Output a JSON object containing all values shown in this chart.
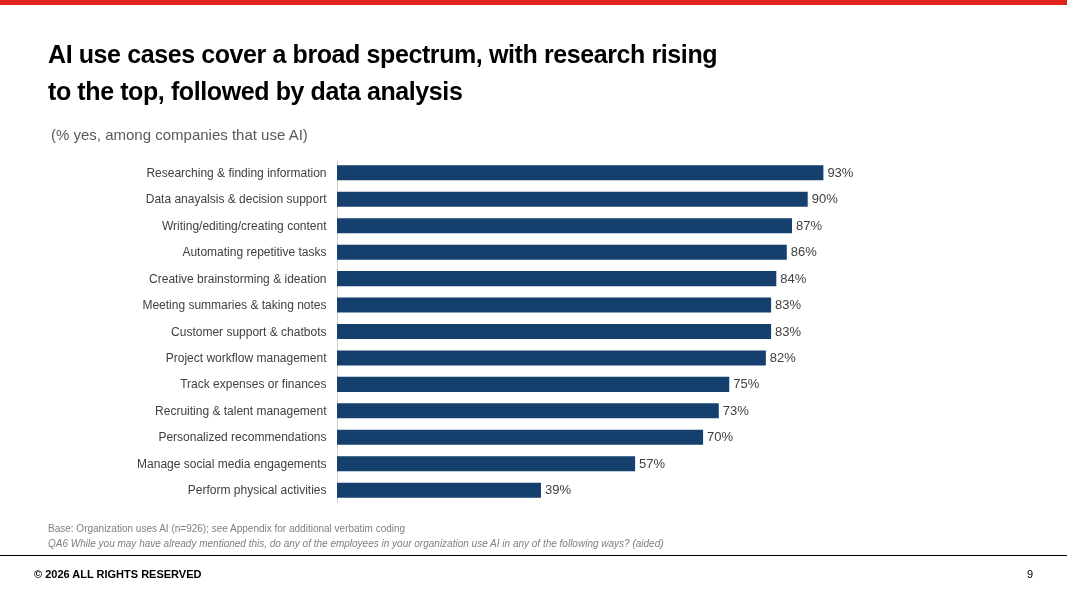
{
  "chart_data": {
    "type": "bar",
    "orientation": "horizontal",
    "title": "AI use cases cover a broad spectrum, with research rising to the top, followed by data analysis",
    "subtitle": "(% yes, among companies that use AI)",
    "categories": [
      "Researching & finding information",
      "Data anayalsis & decision support",
      "Writing/editing/creating content",
      "Automating repetitive tasks",
      "Creative brainstorming & ideation",
      "Meeting summaries & taking notes",
      "Customer support & chatbots",
      "Project workflow management",
      "Track expenses or finances",
      "Recruiting & talent management",
      "Personalized recommendations",
      "Manage social media engagements",
      "Perform physical activities"
    ],
    "values": [
      93,
      90,
      87,
      86,
      84,
      83,
      83,
      82,
      75,
      73,
      70,
      57,
      39
    ],
    "value_labels": [
      "93%",
      "90%",
      "87%",
      "86%",
      "84%",
      "83%",
      "83%",
      "82%",
      "75%",
      "73%",
      "70%",
      "57%",
      "39%"
    ],
    "color": "#153f6c",
    "xlim": [
      0,
      100
    ],
    "tick_labels": "y",
    "annotations": [
      "Base: Organization uses AI (n=926); see Appendix for additional verbatim coding",
      "QA6 While you may have already mentioned this, do any of the employees in your organization use AI in any of the following ways? (aided)",
      "© 2026 ALL RIGHTS RESERVED",
      "9"
    ]
  }
}
